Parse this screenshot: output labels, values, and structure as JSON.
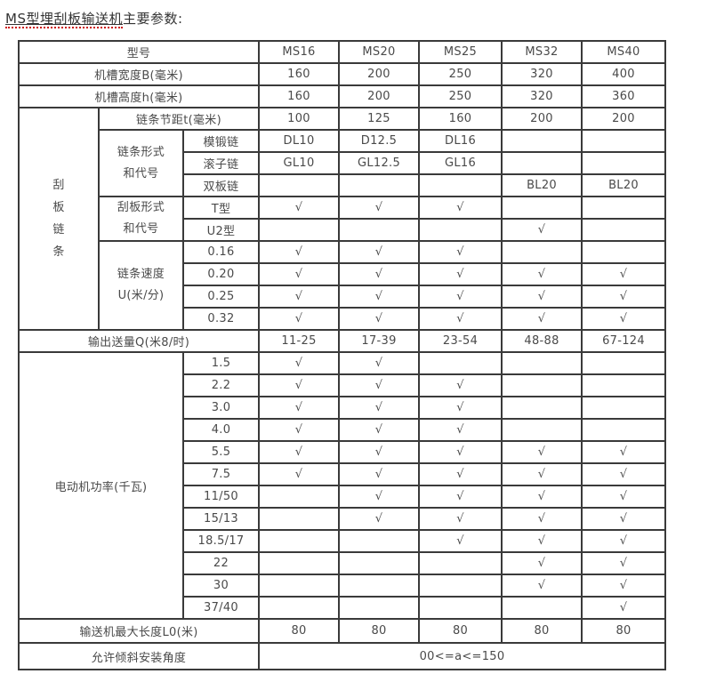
{
  "page": {
    "title_keyword": "MS型埋刮板输送机",
    "title_rest": "主要参数:"
  },
  "colors": {
    "border": "#3a3a3a",
    "text": "#4a4a4a",
    "check_mark": "#5b76a8",
    "title_text": "#333333",
    "keyword_underline_red": "#cc1111"
  },
  "checkmark_symbol": "√",
  "table": {
    "model_header_label": "型号",
    "models": [
      "MS16",
      "MS20",
      "MS25",
      "MS32",
      "MS40"
    ],
    "rows": [
      {
        "cells": [
          {
            "t": "型号",
            "cs": 3,
            "cls": "label"
          },
          {
            "t": "MS16"
          },
          {
            "t": "MS20"
          },
          {
            "t": "MS25"
          },
          {
            "t": "MS32"
          },
          {
            "t": "MS40"
          }
        ]
      },
      {
        "cells": [
          {
            "t": "机槽宽度B(毫米)",
            "cs": 3,
            "cls": "label"
          },
          {
            "t": "160"
          },
          {
            "t": "200"
          },
          {
            "t": "250"
          },
          {
            "t": "320"
          },
          {
            "t": "400"
          }
        ]
      },
      {
        "cells": [
          {
            "t": "机槽高度h(毫米)",
            "cs": 3,
            "cls": "label"
          },
          {
            "t": "160"
          },
          {
            "t": "200"
          },
          {
            "t": "250"
          },
          {
            "t": "320"
          },
          {
            "t": "360"
          }
        ]
      },
      {
        "cells": [
          {
            "t": "刮\n板\n链\n条",
            "rs": 10,
            "cls": "vertical"
          },
          {
            "t": "链条节距t(毫米)",
            "cs": 2,
            "cls": "label"
          },
          {
            "t": "100"
          },
          {
            "t": "125"
          },
          {
            "t": "160"
          },
          {
            "t": "200"
          },
          {
            "t": "200"
          }
        ]
      },
      {
        "cells": [
          {
            "t": "链条形式\n和代号",
            "rs": 3,
            "cls": "label multiline"
          },
          {
            "t": "模锻链",
            "cls": "label"
          },
          {
            "t": "DL10"
          },
          {
            "t": "D12.5"
          },
          {
            "t": "DL16"
          },
          {
            "t": ""
          },
          {
            "t": ""
          }
        ]
      },
      {
        "cells": [
          {
            "t": "滚子链",
            "cls": "label"
          },
          {
            "t": "GL10"
          },
          {
            "t": "GL12.5"
          },
          {
            "t": "GL16"
          },
          {
            "t": ""
          },
          {
            "t": ""
          }
        ]
      },
      {
        "cells": [
          {
            "t": "双板链",
            "cls": "label"
          },
          {
            "t": ""
          },
          {
            "t": ""
          },
          {
            "t": ""
          },
          {
            "t": "BL20"
          },
          {
            "t": "BL20"
          }
        ]
      },
      {
        "cells": [
          {
            "t": "刮板形式\n和代号",
            "rs": 2,
            "cls": "label multiline"
          },
          {
            "t": "T型",
            "cls": "label"
          },
          {
            "t": "√",
            "cls": "check"
          },
          {
            "t": "√",
            "cls": "check"
          },
          {
            "t": "√",
            "cls": "check"
          },
          {
            "t": ""
          },
          {
            "t": ""
          }
        ]
      },
      {
        "cells": [
          {
            "t": "U2型",
            "cls": "label"
          },
          {
            "t": ""
          },
          {
            "t": ""
          },
          {
            "t": ""
          },
          {
            "t": "√",
            "cls": "check"
          },
          {
            "t": ""
          }
        ]
      },
      {
        "cells": [
          {
            "t": "链条速度\nU(米/分)",
            "rs": 4,
            "cls": "label multiline"
          },
          {
            "t": "0.16"
          },
          {
            "t": "√",
            "cls": "check"
          },
          {
            "t": "√",
            "cls": "check"
          },
          {
            "t": "√",
            "cls": "check"
          },
          {
            "t": ""
          },
          {
            "t": ""
          }
        ]
      },
      {
        "cells": [
          {
            "t": "0.20"
          },
          {
            "t": "√",
            "cls": "check"
          },
          {
            "t": "√",
            "cls": "check"
          },
          {
            "t": "√",
            "cls": "check"
          },
          {
            "t": "√",
            "cls": "check"
          },
          {
            "t": "√",
            "cls": "check"
          }
        ]
      },
      {
        "cells": [
          {
            "t": "0.25"
          },
          {
            "t": "√",
            "cls": "check"
          },
          {
            "t": "√",
            "cls": "check"
          },
          {
            "t": "√",
            "cls": "check"
          },
          {
            "t": "√",
            "cls": "check"
          },
          {
            "t": "√",
            "cls": "check"
          }
        ]
      },
      {
        "cells": [
          {
            "t": "0.32"
          },
          {
            "t": "√",
            "cls": "check"
          },
          {
            "t": "√",
            "cls": "check"
          },
          {
            "t": "√",
            "cls": "check"
          },
          {
            "t": "√",
            "cls": "check"
          },
          {
            "t": "√",
            "cls": "check"
          }
        ]
      },
      {
        "cells": [
          {
            "t": "输出送量Q(米8/时)",
            "cs": 3,
            "cls": "label"
          },
          {
            "t": "11-25"
          },
          {
            "t": "17-39"
          },
          {
            "t": "23-54"
          },
          {
            "t": "48-88"
          },
          {
            "t": "67-124"
          }
        ]
      },
      {
        "cells": [
          {
            "t": "电动机功率(千瓦)",
            "cs": 2,
            "rs": 12,
            "cls": "label"
          },
          {
            "t": "1.5"
          },
          {
            "t": "√",
            "cls": "check"
          },
          {
            "t": "√",
            "cls": "check"
          },
          {
            "t": ""
          },
          {
            "t": ""
          },
          {
            "t": ""
          }
        ]
      },
      {
        "cells": [
          {
            "t": "2.2"
          },
          {
            "t": "√",
            "cls": "check"
          },
          {
            "t": "√",
            "cls": "check"
          },
          {
            "t": "√",
            "cls": "check"
          },
          {
            "t": ""
          },
          {
            "t": ""
          }
        ]
      },
      {
        "cells": [
          {
            "t": "3.0"
          },
          {
            "t": "√",
            "cls": "check"
          },
          {
            "t": "√",
            "cls": "check"
          },
          {
            "t": "√",
            "cls": "check"
          },
          {
            "t": ""
          },
          {
            "t": ""
          }
        ]
      },
      {
        "cells": [
          {
            "t": "4.0"
          },
          {
            "t": "√",
            "cls": "check"
          },
          {
            "t": "√",
            "cls": "check"
          },
          {
            "t": "√",
            "cls": "check"
          },
          {
            "t": ""
          },
          {
            "t": ""
          }
        ]
      },
      {
        "cells": [
          {
            "t": "5.5"
          },
          {
            "t": "√",
            "cls": "check"
          },
          {
            "t": "√",
            "cls": "check"
          },
          {
            "t": "√",
            "cls": "check"
          },
          {
            "t": "√",
            "cls": "check"
          },
          {
            "t": "√",
            "cls": "check"
          }
        ]
      },
      {
        "cells": [
          {
            "t": "7.5"
          },
          {
            "t": "√",
            "cls": "check"
          },
          {
            "t": "√",
            "cls": "check"
          },
          {
            "t": "√",
            "cls": "check"
          },
          {
            "t": "√",
            "cls": "check"
          },
          {
            "t": "√",
            "cls": "check"
          }
        ]
      },
      {
        "cells": [
          {
            "t": "11/50"
          },
          {
            "t": ""
          },
          {
            "t": "√",
            "cls": "check"
          },
          {
            "t": "√",
            "cls": "check"
          },
          {
            "t": "√",
            "cls": "check"
          },
          {
            "t": "√",
            "cls": "check"
          }
        ]
      },
      {
        "cells": [
          {
            "t": "15/13"
          },
          {
            "t": ""
          },
          {
            "t": "√",
            "cls": "check"
          },
          {
            "t": "√",
            "cls": "check"
          },
          {
            "t": "√",
            "cls": "check"
          },
          {
            "t": "√",
            "cls": "check"
          }
        ]
      },
      {
        "cells": [
          {
            "t": "18.5/17"
          },
          {
            "t": ""
          },
          {
            "t": ""
          },
          {
            "t": "√",
            "cls": "check"
          },
          {
            "t": "√",
            "cls": "check"
          },
          {
            "t": "√",
            "cls": "check"
          }
        ]
      },
      {
        "cells": [
          {
            "t": "22"
          },
          {
            "t": ""
          },
          {
            "t": ""
          },
          {
            "t": ""
          },
          {
            "t": "√",
            "cls": "check"
          },
          {
            "t": "√",
            "cls": "check"
          }
        ]
      },
      {
        "cells": [
          {
            "t": "30"
          },
          {
            "t": ""
          },
          {
            "t": ""
          },
          {
            "t": ""
          },
          {
            "t": "√",
            "cls": "check"
          },
          {
            "t": "√",
            "cls": "check"
          }
        ]
      },
      {
        "cells": [
          {
            "t": "37/40"
          },
          {
            "t": ""
          },
          {
            "t": ""
          },
          {
            "t": ""
          },
          {
            "t": ""
          },
          {
            "t": "√",
            "cls": "check"
          }
        ]
      },
      {
        "cells": [
          {
            "t": "输送机最大长度L0(米)",
            "cs": 3,
            "cls": "label"
          },
          {
            "t": "80"
          },
          {
            "t": "80"
          },
          {
            "t": "80"
          },
          {
            "t": "80"
          },
          {
            "t": "80"
          }
        ]
      },
      {
        "cells": [
          {
            "t": "允许倾斜安装角度",
            "cs": 3,
            "cls": "label"
          },
          {
            "t": "00<=a<=150",
            "cs": 5
          }
        ]
      }
    ]
  }
}
